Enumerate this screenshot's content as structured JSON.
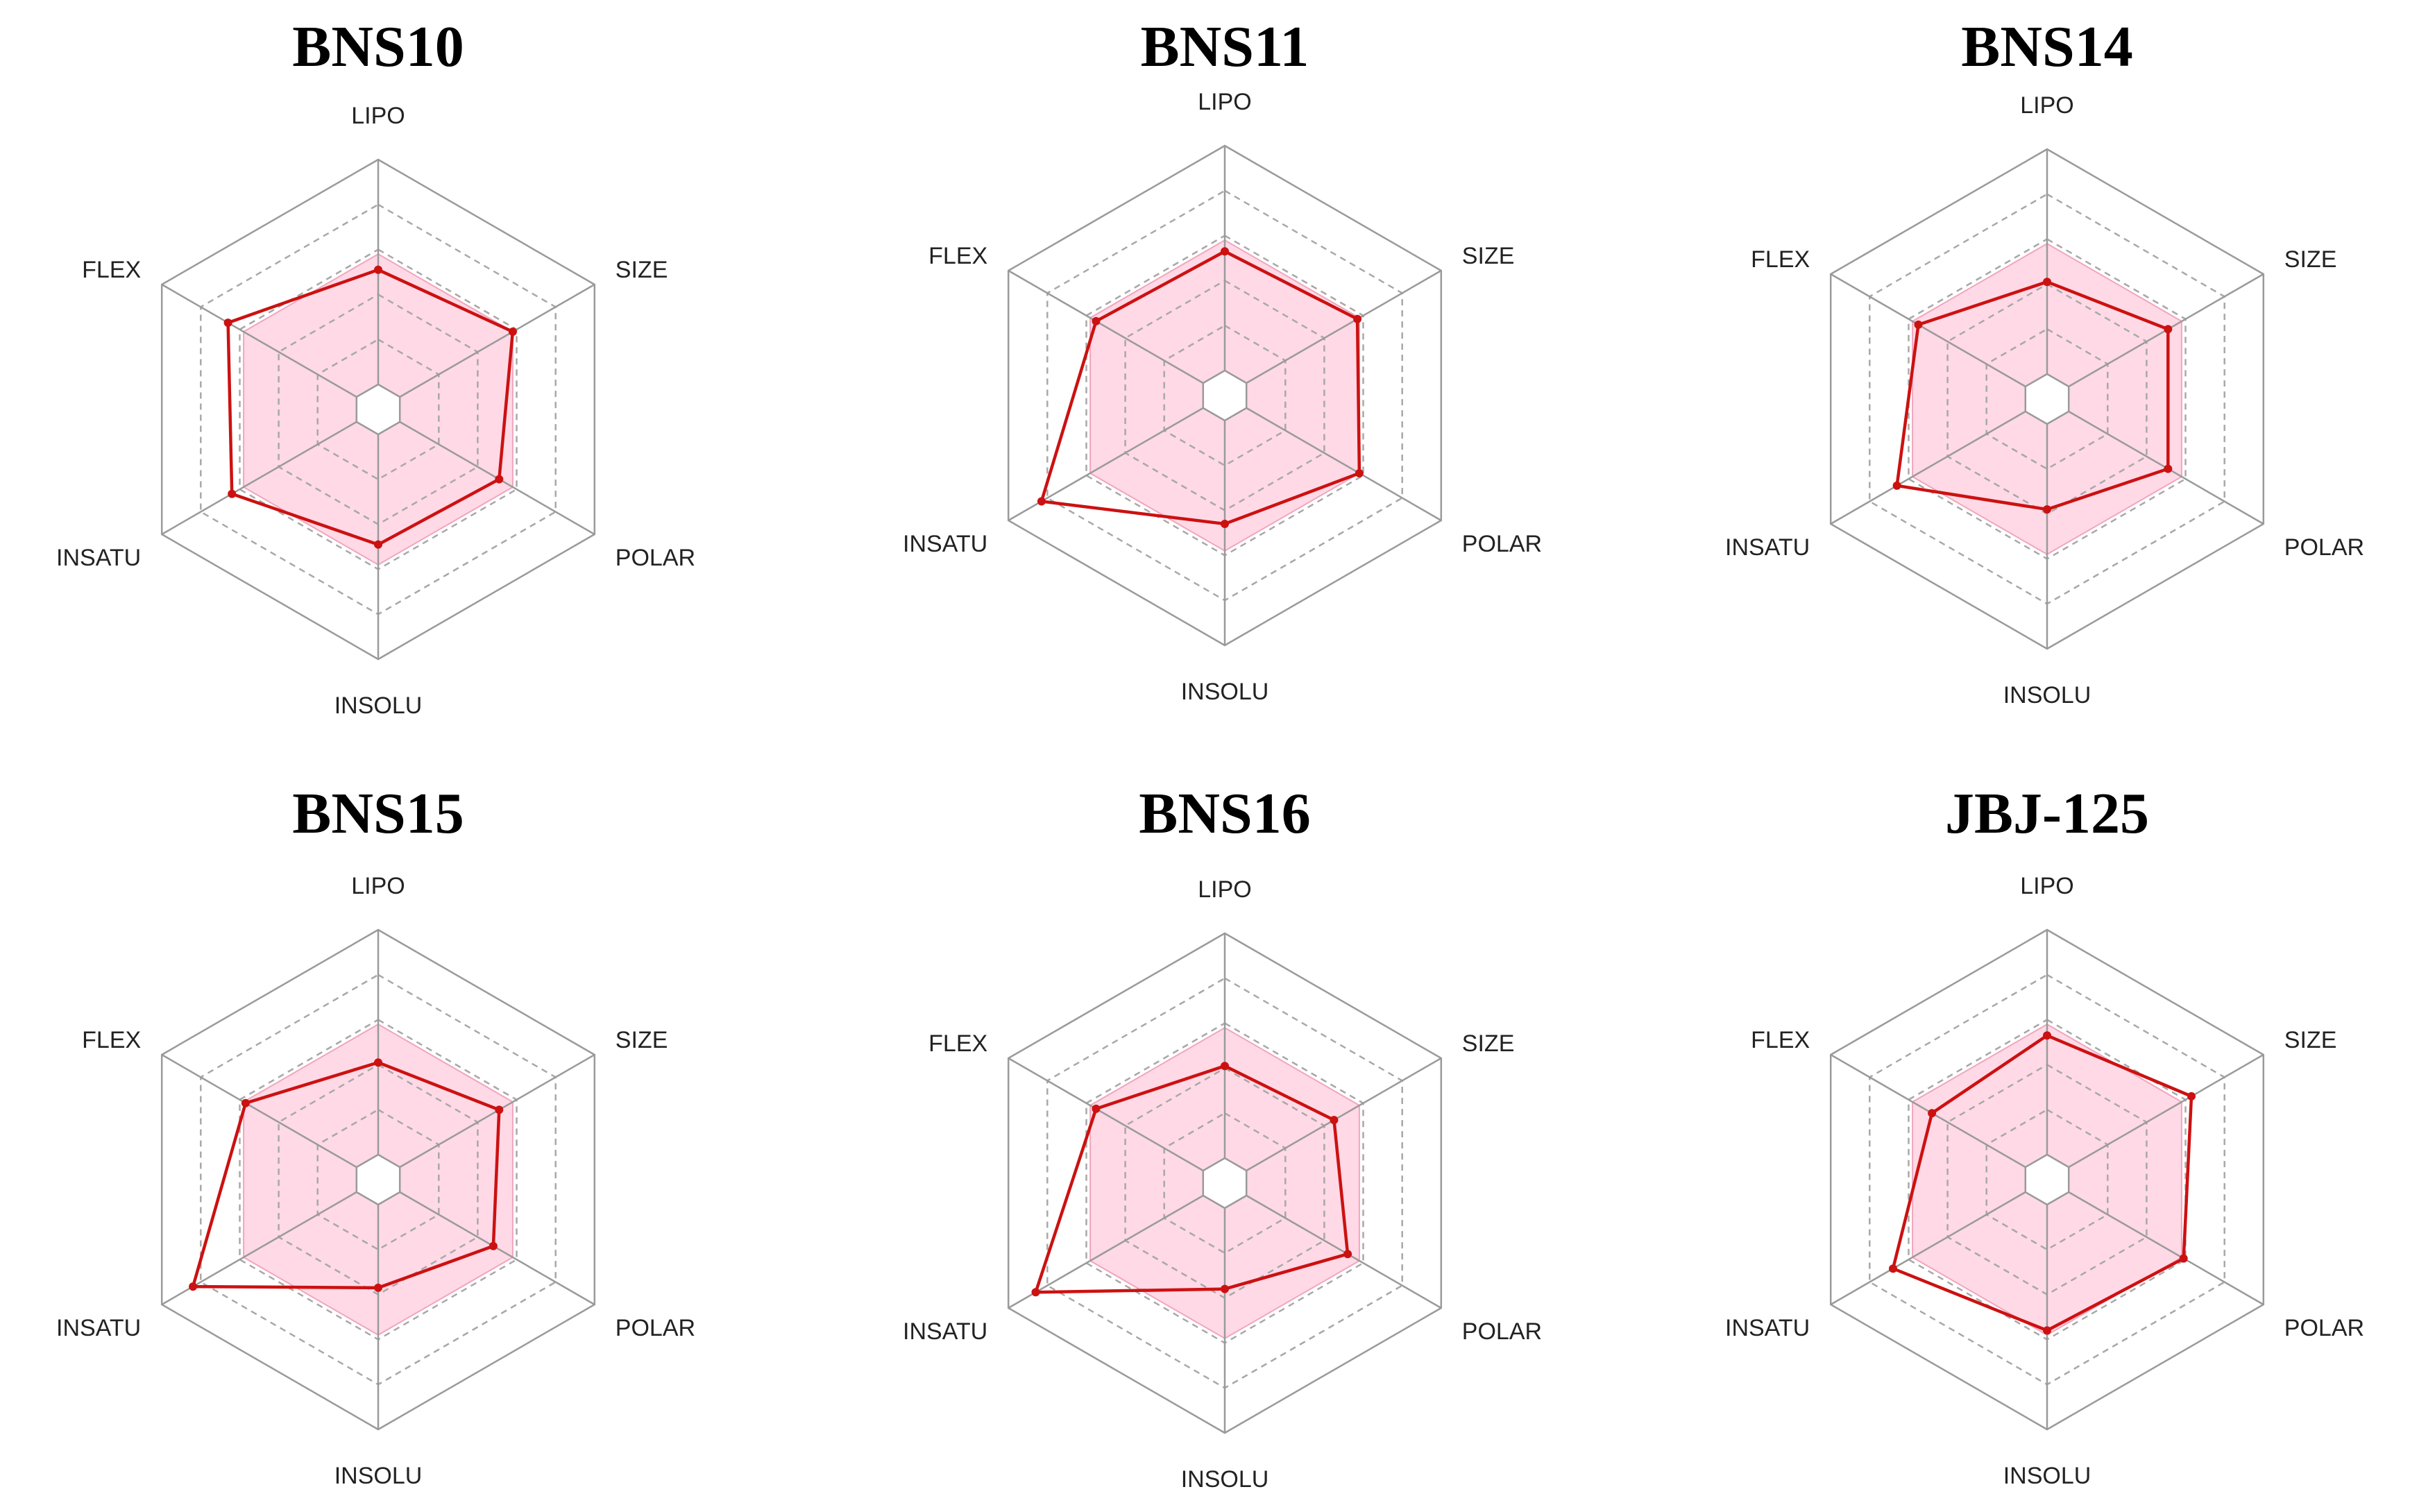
{
  "chart_data": [
    {
      "type": "radar",
      "title": "BNS10",
      "axes": [
        "LIPO",
        "SIZE",
        "POLAR",
        "INSOLU",
        "INSATU",
        "FLEX"
      ],
      "range": [
        0,
        1
      ],
      "grid_levels": [
        0.2,
        0.4,
        0.6,
        0.8,
        1.0
      ],
      "optimal_range": [
        0.58,
        0.58,
        0.58,
        0.58,
        0.58,
        0.58
      ],
      "values": [
        0.51,
        0.58,
        0.51,
        0.49,
        0.64,
        0.66
      ]
    },
    {
      "type": "radar",
      "title": "BNS11",
      "axes": [
        "LIPO",
        "SIZE",
        "POLAR",
        "INSOLU",
        "INSATU",
        "FLEX"
      ],
      "range": [
        0,
        1
      ],
      "grid_levels": [
        0.2,
        0.4,
        0.6,
        0.8,
        1.0
      ],
      "optimal_range": [
        0.58,
        0.58,
        0.58,
        0.58,
        0.58,
        0.58
      ],
      "values": [
        0.53,
        0.57,
        0.58,
        0.46,
        0.83,
        0.55
      ]
    },
    {
      "type": "radar",
      "title": "BNS14",
      "axes": [
        "LIPO",
        "SIZE",
        "POLAR",
        "INSOLU",
        "INSATU",
        "FLEX"
      ],
      "range": [
        0,
        1
      ],
      "grid_levels": [
        0.2,
        0.4,
        0.6,
        0.8,
        1.0
      ],
      "optimal_range": [
        0.58,
        0.58,
        0.58,
        0.58,
        0.58,
        0.58
      ],
      "values": [
        0.41,
        0.51,
        0.51,
        0.38,
        0.66,
        0.55
      ]
    },
    {
      "type": "radar",
      "title": "BNS15",
      "axes": [
        "LIPO",
        "SIZE",
        "POLAR",
        "INSOLU",
        "INSATU",
        "FLEX"
      ],
      "range": [
        0,
        1
      ],
      "grid_levels": [
        0.2,
        0.4,
        0.6,
        0.8,
        1.0
      ],
      "optimal_range": [
        0.58,
        0.58,
        0.58,
        0.58,
        0.58,
        0.58
      ],
      "values": [
        0.41,
        0.51,
        0.48,
        0.37,
        0.84,
        0.57
      ]
    },
    {
      "type": "radar",
      "title": "BNS16",
      "axes": [
        "LIPO",
        "SIZE",
        "POLAR",
        "INSOLU",
        "INSATU",
        "FLEX"
      ],
      "range": [
        0,
        1
      ],
      "grid_levels": [
        0.2,
        0.4,
        0.6,
        0.8,
        1.0
      ],
      "optimal_range": [
        0.58,
        0.58,
        0.58,
        0.58,
        0.58,
        0.58
      ],
      "values": [
        0.41,
        0.45,
        0.52,
        0.36,
        0.86,
        0.55
      ]
    },
    {
      "type": "radar",
      "title": "JBJ-125",
      "axes": [
        "LIPO",
        "SIZE",
        "POLAR",
        "INSOLU",
        "INSATU",
        "FLEX"
      ],
      "range": [
        0,
        1
      ],
      "grid_levels": [
        0.2,
        0.4,
        0.6,
        0.8,
        1.0
      ],
      "optimal_range": [
        0.58,
        0.58,
        0.58,
        0.58,
        0.58,
        0.58
      ],
      "values": [
        0.53,
        0.63,
        0.59,
        0.56,
        0.68,
        0.48
      ]
    }
  ]
}
